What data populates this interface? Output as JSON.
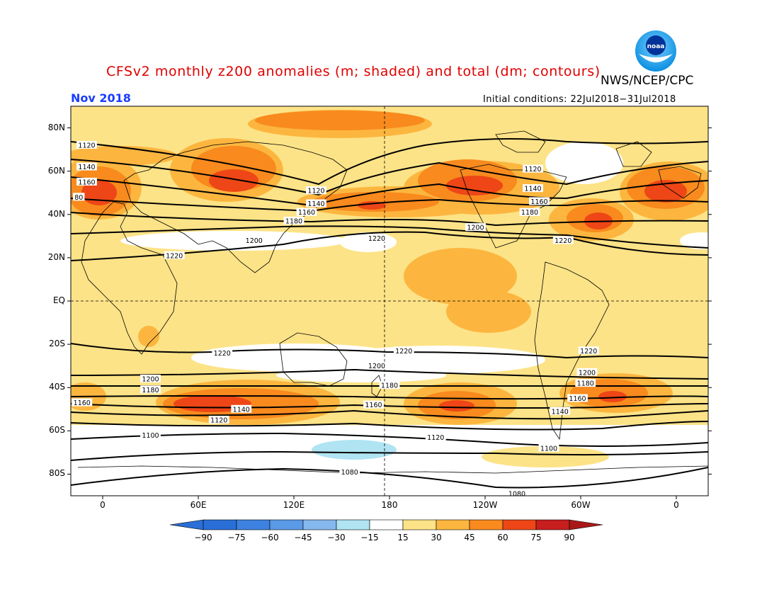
{
  "header": {
    "title": "CFSv2 monthly z200 anomalies (m; shaded) and total (dm; contours)",
    "month": "Nov 2018",
    "agency": "NWS/NCEP/CPC",
    "initial_conditions": "Initial conditions: 22Jul2018−31Jul2018",
    "logo_text": "noaa"
  },
  "axes": {
    "lat_labels": [
      "80N",
      "60N",
      "40N",
      "20N",
      "EQ",
      "20S",
      "40S",
      "60S",
      "80S"
    ],
    "lon_labels": [
      "0",
      "60E",
      "120E",
      "180",
      "120W",
      "60W",
      "0"
    ]
  },
  "colorbar": {
    "ticks": [
      "−90",
      "−75",
      "−60",
      "−45",
      "−30",
      "−15",
      "15",
      "30",
      "45",
      "60",
      "75",
      "90"
    ],
    "colors": [
      "#2a6fd8",
      "#3d82e0",
      "#5b9ae6",
      "#85b8ee",
      "#b0e4f3",
      "#ffffff",
      "#fde387",
      "#fcb63f",
      "#f88a1e",
      "#ee4616",
      "#c71e1e"
    ],
    "arrow_left_color": "#2a6fd8",
    "arrow_right_color": "#a81818"
  },
  "contours": [
    {
      "label": "1120",
      "lon": -10,
      "lat": 72
    },
    {
      "label": "1140",
      "lon": -10,
      "lat": 62
    },
    {
      "label": "1160",
      "lon": -10,
      "lat": 55
    },
    {
      "label": "80",
      "lon": -15,
      "lat": 48
    },
    {
      "label": "1200",
      "lon": 95,
      "lat": 28
    },
    {
      "label": "1220",
      "lon": 45,
      "lat": 21
    },
    {
      "label": "1120",
      "lon": 134,
      "lat": 51
    },
    {
      "label": "1140",
      "lon": 134,
      "lat": 45
    },
    {
      "label": "1160",
      "lon": 128,
      "lat": 41
    },
    {
      "label": "1180",
      "lon": 120,
      "lat": 37
    },
    {
      "label": "1220",
      "lon": 172,
      "lat": 29
    },
    {
      "label": "1200",
      "lon": 234,
      "lat": 34
    },
    {
      "label": "1120",
      "lon": 270,
      "lat": 61
    },
    {
      "label": "1140",
      "lon": 270,
      "lat": 52
    },
    {
      "label": "1160",
      "lon": 274,
      "lat": 46
    },
    {
      "label": "1180",
      "lon": 268,
      "lat": 41
    },
    {
      "label": "1220",
      "lon": 289,
      "lat": 28
    },
    {
      "label": "1220",
      "lon": 75,
      "lat": -24
    },
    {
      "label": "1220",
      "lon": 189,
      "lat": -23
    },
    {
      "label": "1200",
      "lon": 172,
      "lat": -30
    },
    {
      "label": "1180",
      "lon": 180,
      "lat": -39
    },
    {
      "label": "1160",
      "lon": 170,
      "lat": -48
    },
    {
      "label": "1200",
      "lon": 30,
      "lat": -36
    },
    {
      "label": "1180",
      "lon": 30,
      "lat": -41
    },
    {
      "label": "1160",
      "lon": -13,
      "lat": -47
    },
    {
      "label": "1140",
      "lon": 87,
      "lat": -50
    },
    {
      "label": "1120",
      "lon": 73,
      "lat": -55
    },
    {
      "label": "1100",
      "lon": 30,
      "lat": -62
    },
    {
      "label": "1120",
      "lon": 209,
      "lat": -63
    },
    {
      "label": "1080",
      "lon": 155,
      "lat": -79
    },
    {
      "label": "1080",
      "lon": 260,
      "lat": -89
    },
    {
      "label": "1220",
      "lon": 305,
      "lat": -23
    },
    {
      "label": "1200",
      "lon": 304,
      "lat": -33
    },
    {
      "label": "1180",
      "lon": 303,
      "lat": -38
    },
    {
      "label": "1160",
      "lon": 298,
      "lat": -45
    },
    {
      "label": "1140",
      "lon": 287,
      "lat": -51
    },
    {
      "label": "1100",
      "lon": 280,
      "lat": -68
    }
  ]
}
